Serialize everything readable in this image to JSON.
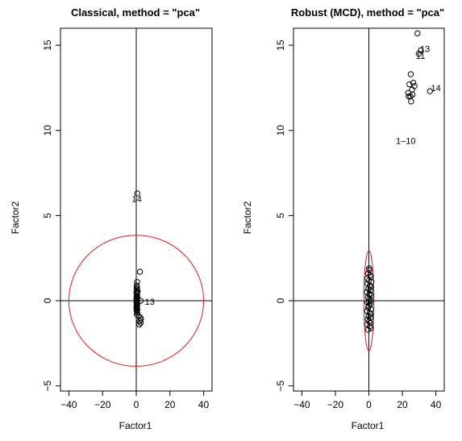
{
  "chart_data": [
    {
      "type": "scatter",
      "title": "Classical, method = \"pca\"",
      "xlabel": "Factor1",
      "ylabel": "Factor2",
      "xlim": [
        -45,
        45
      ],
      "ylim": [
        -5.3,
        16.0
      ],
      "xticks": [
        -40,
        -20,
        0,
        20,
        40
      ],
      "yticks": [
        -5,
        0,
        5,
        10,
        15
      ],
      "xtick_labels": [
        "−40",
        "−20",
        "0",
        "20",
        "40"
      ],
      "ytick_labels": [
        "−5",
        "0",
        "5",
        "10",
        "15"
      ],
      "grid": false,
      "ref_lines": {
        "x": 0,
        "y": 0
      },
      "ellipse": {
        "center": [
          0,
          0
        ],
        "rx": 40,
        "ry": 3.85,
        "color": "#e41a1c"
      },
      "points": {
        "x": [
          0.5,
          0.2,
          0.4,
          0.3,
          0.6,
          0.1,
          0.4,
          0.2,
          0.5,
          0.3,
          0.6,
          0.1,
          0.3,
          0.5,
          0.2,
          0.4,
          0.1,
          0.6,
          0.3,
          0.2,
          0.5,
          0.4,
          0.1,
          0.3,
          0.6,
          0.2,
          0.4,
          0.5,
          0.3,
          1.5,
          2.5,
          2.8,
          2.0,
          2.6,
          1.8,
          2.2,
          0.8
        ],
        "y": [
          1.1,
          0.9,
          0.8,
          0.7,
          0.6,
          0.5,
          0.45,
          0.4,
          0.3,
          0.25,
          0.2,
          0.15,
          0.1,
          0.05,
          0.0,
          -0.05,
          -0.1,
          -0.15,
          -0.2,
          -0.25,
          -0.3,
          -0.35,
          -0.4,
          -0.45,
          -0.5,
          -0.55,
          -0.6,
          -0.7,
          -0.8,
          -0.9,
          -1.0,
          -1.1,
          -1.2,
          -1.3,
          -1.4,
          1.7,
          0.55
        ],
        "outliers": [
          {
            "label": "14",
            "x": 0.6,
            "y": 6.3,
            "lx": 0.3,
            "ly": 6.0
          },
          {
            "label": "13",
            "x": 2.6,
            "y": 0.0,
            "lx": 8.0,
            "ly": -0.05
          }
        ]
      }
    },
    {
      "type": "scatter",
      "title": "Robust (MCD), method = \"pca\"",
      "xlabel": "Factor1",
      "ylabel": "Factor2",
      "xlim": [
        -45,
        45
      ],
      "ylim": [
        -5.3,
        16.0
      ],
      "xticks": [
        -40,
        -20,
        0,
        20,
        40
      ],
      "yticks": [
        -5,
        0,
        5,
        10,
        15
      ],
      "xtick_labels": [
        "−40",
        "−20",
        "0",
        "20",
        "40"
      ],
      "ytick_labels": [
        "−5",
        "0",
        "5",
        "10",
        "15"
      ],
      "grid": false,
      "ref_lines": {
        "x": 0,
        "y": 0
      },
      "ellipse": {
        "center": [
          0,
          0
        ],
        "rx": 3.0,
        "ry": 2.95,
        "color": "#e41a1c"
      },
      "points": {
        "x": [
          0.3,
          -0.5,
          0.8,
          1.2,
          -1.0,
          0.0,
          1.5,
          -0.8,
          0.6,
          1.0,
          -0.3,
          0.9,
          -1.2,
          0.4,
          1.4,
          -0.6,
          0.2,
          1.1,
          -0.9,
          0.7,
          0.0,
          -0.4,
          1.3,
          -1.1,
          0.5,
          0.9,
          -0.2,
          1.0,
          -0.7,
          0.3,
          0.8,
          -1.0,
          0.6,
          1.2,
          -0.5,
          0.1,
          0.0,
          0.5
        ],
        "y": [
          1.8,
          1.6,
          1.5,
          1.4,
          1.3,
          1.2,
          1.1,
          1.0,
          0.9,
          0.8,
          0.7,
          0.6,
          0.5,
          0.4,
          0.3,
          0.2,
          0.1,
          0.0,
          -0.1,
          -0.2,
          -0.3,
          -0.4,
          -0.5,
          -0.6,
          -0.7,
          -0.8,
          -0.9,
          -1.0,
          -1.1,
          -1.2,
          -1.3,
          -1.4,
          -1.5,
          -1.6,
          -1.7,
          1.9,
          -0.05,
          0.35
        ],
        "cluster": {
          "x": [
            25.0,
            26.5,
            24.2,
            27.2,
            25.8,
            23.5,
            24.8,
            26.0,
            23.8,
            25.2,
            29.8,
            31.0,
            29.0,
            36.5
          ],
          "y": [
            13.3,
            12.8,
            12.7,
            12.6,
            12.4,
            12.2,
            12.0,
            12.1,
            12.0,
            11.7,
            14.5,
            14.7,
            15.7,
            12.3
          ]
        },
        "labels": [
          {
            "label": "1–10",
            "lx": 22.0,
            "ly": 9.4,
            "size": "small"
          },
          {
            "label": "13",
            "lx": 33.5,
            "ly": 14.8,
            "size": "normal"
          },
          {
            "label": "11",
            "lx": 30.8,
            "ly": 14.4,
            "size": "small"
          },
          {
            "label": "14",
            "lx": 40.0,
            "ly": 12.5,
            "size": "normal"
          }
        ]
      }
    }
  ]
}
